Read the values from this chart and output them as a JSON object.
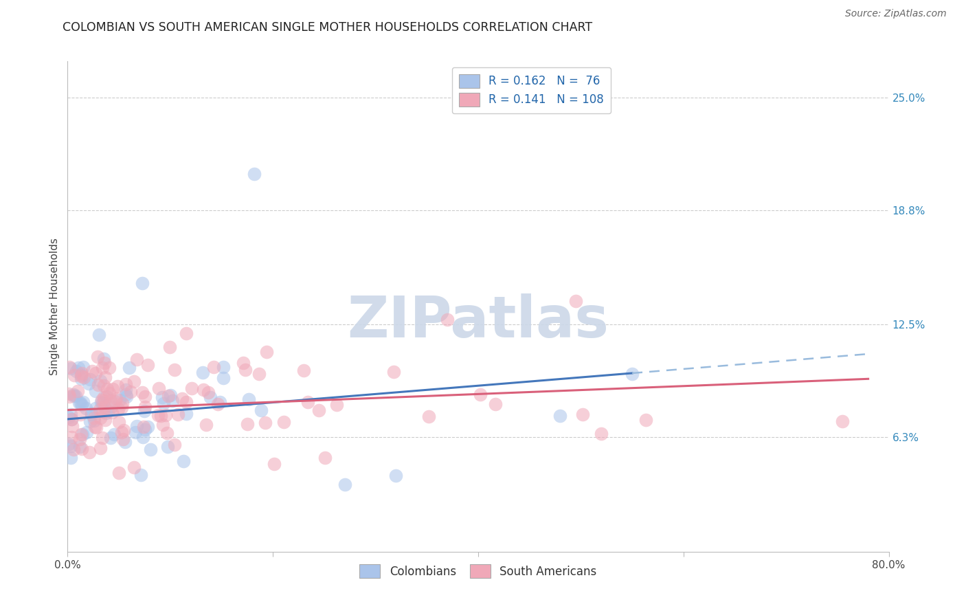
{
  "title": "COLOMBIAN VS SOUTH AMERICAN SINGLE MOTHER HOUSEHOLDS CORRELATION CHART",
  "source": "Source: ZipAtlas.com",
  "ylabel": "Single Mother Households",
  "right_yticks": [
    "25.0%",
    "18.8%",
    "12.5%",
    "6.3%"
  ],
  "right_ytick_vals": [
    0.25,
    0.188,
    0.125,
    0.063
  ],
  "legend_colombians_R": "0.162",
  "legend_colombians_N": "76",
  "legend_southamericans_R": "0.141",
  "legend_southamericans_N": "108",
  "colombian_color": "#aac4ea",
  "southamerican_color": "#f0a8b8",
  "colombian_line_color": "#4477bb",
  "southamerican_line_color": "#d9607a",
  "dashed_line_color": "#99bbdd",
  "watermark_color": "#ccd8e8",
  "title_fontsize": 12.5,
  "label_fontsize": 11,
  "tick_fontsize": 11,
  "ylim_low": 0.0,
  "ylim_high": 0.27,
  "xlim_low": 0.0,
  "xlim_high": 0.8
}
